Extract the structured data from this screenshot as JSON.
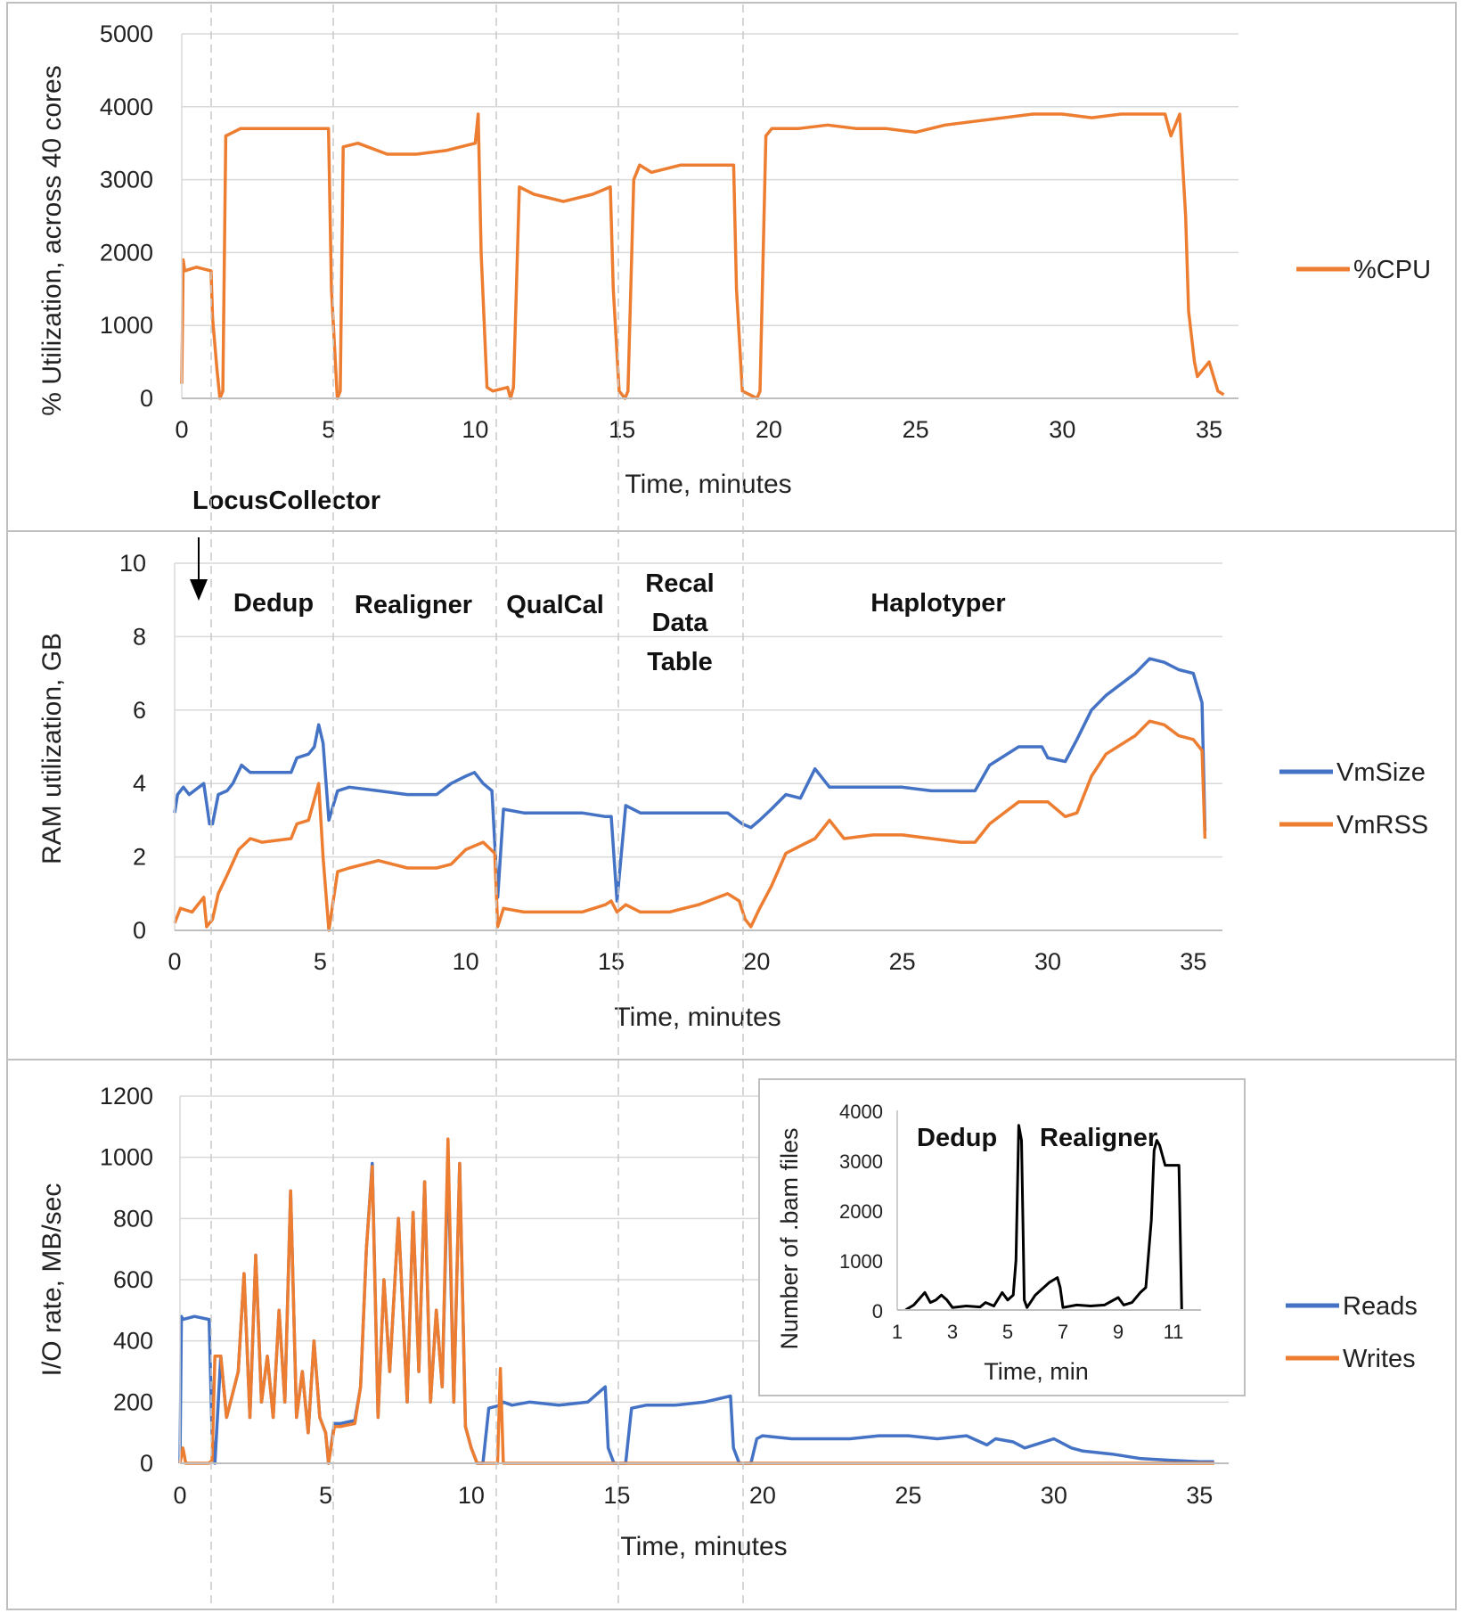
{
  "colors": {
    "blue": "#4472C4",
    "orange": "#ED7D31",
    "black": "#000000",
    "grid": "#D9D9D9",
    "frame": "#BFBFBF",
    "phase_line": "#C8C8C8"
  },
  "chart_data": [
    {
      "id": "cpu",
      "type": "line",
      "title": "",
      "xlabel": "Time, minutes",
      "ylabel": "% Utilization, across 40 cores",
      "xlim": [
        0,
        36
      ],
      "ylim": [
        0,
        5000
      ],
      "x_ticks": [
        "0",
        "5",
        "10",
        "15",
        "20",
        "25",
        "30",
        "35"
      ],
      "y_ticks": [
        "0",
        "1000",
        "2000",
        "3000",
        "4000",
        "5000"
      ],
      "grid": true,
      "legend": "right",
      "series": [
        {
          "name": "%CPU",
          "color": "orange",
          "x": [
            0,
            0.05,
            0.1,
            0.5,
            1.0,
            1.05,
            1.2,
            1.3,
            1.4,
            1.5,
            2,
            3,
            4,
            5,
            5.1,
            5.3,
            5.4,
            5.5,
            6,
            7,
            8,
            9,
            9.5,
            10,
            10.1,
            10.2,
            10.4,
            10.6,
            11.1,
            11.2,
            11.3,
            11.5,
            12,
            13,
            14,
            14.6,
            14.7,
            14.9,
            15.1,
            15.2,
            15.4,
            15.6,
            16,
            17,
            18,
            18.8,
            18.9,
            19.1,
            19.6,
            19.7,
            19.9,
            20.1,
            21,
            22,
            23,
            24,
            25,
            26,
            27,
            28,
            29,
            30,
            31,
            32,
            33,
            33.5,
            33.7,
            34,
            34.2,
            34.3,
            34.5,
            34.6,
            35,
            35.3,
            35.5
          ],
          "y": [
            200,
            1900,
            1750,
            1800,
            1750,
            1100,
            400,
            0,
            100,
            3600,
            3700,
            3700,
            3700,
            3700,
            1500,
            0,
            100,
            3450,
            3500,
            3350,
            3350,
            3400,
            3450,
            3500,
            3900,
            2000,
            150,
            100,
            150,
            0,
            150,
            2900,
            2800,
            2700,
            2800,
            2900,
            1500,
            100,
            0,
            100,
            3000,
            3200,
            3100,
            3200,
            3200,
            3200,
            1500,
            100,
            0,
            100,
            3600,
            3700,
            3700,
            3750,
            3700,
            3700,
            3650,
            3750,
            3800,
            3850,
            3900,
            3900,
            3850,
            3900,
            3900,
            3900,
            3600,
            3900,
            2500,
            1200,
            500,
            300,
            500,
            100,
            50
          ]
        }
      ]
    },
    {
      "id": "ram",
      "type": "line",
      "title": "",
      "xlabel": "Time, minutes",
      "ylabel": "RAM utilization, GB",
      "xlim": [
        0,
        36
      ],
      "ylim": [
        0,
        10
      ],
      "x_ticks": [
        "0",
        "5",
        "10",
        "15",
        "20",
        "25",
        "30",
        "35"
      ],
      "y_ticks": [
        "0",
        "2",
        "4",
        "6",
        "8",
        "10"
      ],
      "grid": true,
      "legend": "right",
      "annotations": [
        "LocusCollector",
        "Dedup",
        "Realigner",
        "QualCal",
        "Recal",
        "Data",
        "Table",
        "Haplotyper"
      ],
      "series": [
        {
          "name": "VmSize",
          "color": "blue",
          "x": [
            0,
            0.1,
            0.3,
            0.5,
            1.0,
            1.2,
            1.3,
            1.5,
            1.8,
            2,
            2.3,
            2.6,
            3,
            4,
            4.2,
            4.6,
            4.8,
            4.95,
            5.1,
            5.3,
            5.6,
            6,
            7,
            8,
            9,
            9.5,
            10,
            10.3,
            10.6,
            10.9,
            11.1,
            11.3,
            12,
            13,
            14,
            14.8,
            15,
            15.2,
            15.5,
            16,
            17,
            18,
            19,
            19.5,
            19.8,
            20.1,
            20.5,
            21,
            21.5,
            22,
            22.5,
            23,
            24,
            25,
            26,
            27,
            27.5,
            28,
            29,
            29.8,
            30,
            30.6,
            31,
            31.5,
            32,
            33,
            33.5,
            34,
            34.5,
            35,
            35.3,
            35.4
          ],
          "y": [
            3.2,
            3.7,
            3.9,
            3.7,
            4.0,
            2.9,
            2.9,
            3.7,
            3.8,
            4.0,
            4.5,
            4.3,
            4.3,
            4.3,
            4.7,
            4.8,
            5.0,
            5.6,
            5.1,
            3.0,
            3.8,
            3.9,
            3.8,
            3.7,
            3.7,
            4.0,
            4.2,
            4.3,
            4.0,
            3.8,
            0.9,
            3.3,
            3.2,
            3.2,
            3.2,
            3.1,
            3.1,
            0.8,
            3.4,
            3.2,
            3.2,
            3.2,
            3.2,
            2.9,
            2.8,
            3.0,
            3.3,
            3.7,
            3.6,
            4.4,
            3.9,
            3.9,
            3.9,
            3.9,
            3.8,
            3.8,
            3.8,
            4.5,
            5.0,
            5.0,
            4.7,
            4.6,
            5.2,
            6.0,
            6.4,
            7.0,
            7.4,
            7.3,
            7.1,
            7.0,
            6.2,
            2.7
          ]
        },
        {
          "name": "VmRSS",
          "color": "orange",
          "x": [
            0,
            0.2,
            0.6,
            1.0,
            1.1,
            1.3,
            1.5,
            1.8,
            2.2,
            2.6,
            3,
            4,
            4.2,
            4.6,
            4.95,
            5.1,
            5.3,
            5.6,
            6,
            7,
            8,
            9,
            9.5,
            10,
            10.3,
            10.6,
            11,
            11.1,
            11.3,
            12,
            13,
            14,
            14.8,
            15,
            15.2,
            15.5,
            16,
            17,
            18,
            19,
            19.4,
            19.6,
            19.8,
            20.1,
            20.5,
            21,
            21.5,
            22,
            22.5,
            23,
            24,
            25,
            26,
            27,
            27.5,
            28,
            29,
            30,
            30.6,
            31,
            31.5,
            32,
            33,
            33.5,
            34,
            34.5,
            35,
            35.3,
            35.4
          ],
          "y": [
            0.2,
            0.6,
            0.5,
            0.9,
            0.1,
            0.3,
            1.0,
            1.5,
            2.2,
            2.5,
            2.4,
            2.5,
            2.9,
            3.0,
            4.0,
            2.0,
            0.0,
            1.6,
            1.7,
            1.9,
            1.7,
            1.7,
            1.8,
            2.2,
            2.3,
            2.4,
            2.1,
            0.1,
            0.6,
            0.5,
            0.5,
            0.5,
            0.7,
            0.8,
            0.5,
            0.7,
            0.5,
            0.5,
            0.7,
            1.0,
            0.8,
            0.3,
            0.1,
            0.6,
            1.2,
            2.1,
            2.3,
            2.5,
            3.0,
            2.5,
            2.6,
            2.6,
            2.5,
            2.4,
            2.4,
            2.9,
            3.5,
            3.5,
            3.1,
            3.2,
            4.2,
            4.8,
            5.3,
            5.7,
            5.6,
            5.3,
            5.2,
            4.9,
            2.5
          ]
        }
      ]
    },
    {
      "id": "io",
      "type": "line",
      "title": "",
      "xlabel": "Time, minutes",
      "ylabel": "I/O rate, MB/sec",
      "xlim": [
        0,
        36
      ],
      "ylim": [
        0,
        1200
      ],
      "x_ticks": [
        "0",
        "5",
        "10",
        "15",
        "20",
        "25",
        "30",
        "35"
      ],
      "y_ticks": [
        "0",
        "200",
        "400",
        "600",
        "800",
        "1000",
        "1200"
      ],
      "grid": true,
      "legend": "right",
      "series": [
        {
          "name": "Reads",
          "color": "blue",
          "x": [
            0,
            0.05,
            0.1,
            0.5,
            1.0,
            1.1,
            1.2,
            1.4,
            1.6,
            2.0,
            2.2,
            2.4,
            2.6,
            2.8,
            3.0,
            3.2,
            3.4,
            3.6,
            3.8,
            4.0,
            4.2,
            4.4,
            4.6,
            4.8,
            5.0,
            5.1,
            5.3,
            5.5,
            6.0,
            6.2,
            6.4,
            6.6,
            6.8,
            7.0,
            7.2,
            7.5,
            7.8,
            8.0,
            8.2,
            8.4,
            8.6,
            8.8,
            9.0,
            9.2,
            9.4,
            9.6,
            9.8,
            10.0,
            10.2,
            10.4,
            10.6,
            11.0,
            11.1,
            11.4,
            12,
            13,
            14,
            14.6,
            14.7,
            14.9,
            15.3,
            15.5,
            16,
            17,
            18,
            18.9,
            19.0,
            19.2,
            19.6,
            19.8,
            20,
            21,
            22,
            23,
            24,
            25,
            26,
            27,
            27.7,
            28,
            28.6,
            29,
            30,
            30.6,
            31,
            32,
            33,
            34,
            35,
            35.5
          ],
          "y": [
            0,
            480,
            470,
            480,
            470,
            100,
            0,
            350,
            150,
            300,
            620,
            150,
            680,
            200,
            350,
            150,
            500,
            200,
            890,
            150,
            300,
            100,
            400,
            150,
            100,
            0,
            130,
            130,
            140,
            250,
            700,
            980,
            150,
            600,
            300,
            800,
            200,
            820,
            300,
            920,
            200,
            500,
            250,
            1000,
            200,
            980,
            120,
            50,
            0,
            0,
            180,
            190,
            200,
            190,
            200,
            190,
            200,
            250,
            50,
            0,
            0,
            180,
            190,
            190,
            200,
            220,
            50,
            0,
            0,
            80,
            90,
            80,
            80,
            80,
            90,
            90,
            80,
            90,
            60,
            80,
            70,
            50,
            80,
            50,
            40,
            30,
            15,
            10,
            5,
            5
          ]
        },
        {
          "name": "Writes",
          "color": "orange",
          "x": [
            0,
            0.1,
            0.2,
            1.0,
            1.1,
            1.2,
            1.4,
            1.6,
            2.0,
            2.2,
            2.4,
            2.6,
            2.8,
            3.0,
            3.2,
            3.4,
            3.6,
            3.8,
            4.0,
            4.2,
            4.4,
            4.6,
            4.8,
            5.0,
            5.1,
            5.3,
            5.5,
            6.0,
            6.2,
            6.4,
            6.6,
            6.8,
            7.0,
            7.2,
            7.5,
            7.8,
            8.0,
            8.2,
            8.4,
            8.6,
            8.8,
            9.0,
            9.2,
            9.4,
            9.6,
            9.8,
            10.0,
            10.2,
            10.4,
            10.6,
            10.9,
            11.0,
            11.1,
            11.2,
            12,
            20,
            30,
            35.5
          ],
          "y": [
            0,
            50,
            0,
            0,
            10,
            350,
            350,
            150,
            300,
            620,
            150,
            680,
            200,
            350,
            150,
            500,
            200,
            890,
            150,
            300,
            100,
            400,
            150,
            100,
            0,
            120,
            120,
            130,
            250,
            700,
            970,
            150,
            600,
            300,
            800,
            200,
            820,
            300,
            920,
            200,
            500,
            250,
            1060,
            200,
            980,
            120,
            50,
            0,
            0,
            0,
            0,
            310,
            0,
            0,
            0,
            0,
            0,
            0
          ]
        }
      ]
    },
    {
      "id": "inset",
      "type": "line",
      "title": "",
      "xlabel": "Time, min",
      "ylabel": "Number of .bam files",
      "xlim": [
        1,
        12
      ],
      "ylim": [
        0,
        4000
      ],
      "x_ticks": [
        "1",
        "3",
        "5",
        "7",
        "9",
        "11"
      ],
      "y_ticks": [
        "0",
        "1000",
        "2000",
        "3000",
        "4000"
      ],
      "grid": false,
      "annotations": [
        "Dedup",
        "Realigner"
      ],
      "series": [
        {
          "name": "bam files",
          "color": "black",
          "x": [
            1.3,
            1.6,
            2.0,
            2.2,
            2.4,
            2.6,
            2.8,
            3.0,
            3.5,
            4.0,
            4.2,
            4.5,
            4.8,
            5.0,
            5.2,
            5.3,
            5.4,
            5.5,
            5.6,
            5.7,
            6.0,
            6.5,
            6.8,
            6.9,
            7.0,
            7.5,
            8,
            8.5,
            9,
            9.2,
            9.5,
            9.8,
            10.0,
            10.2,
            10.3,
            10.4,
            10.5,
            10.6,
            10.7,
            10.8,
            11.2,
            11.3
          ],
          "y": [
            0,
            100,
            350,
            150,
            200,
            300,
            200,
            50,
            80,
            60,
            150,
            80,
            350,
            200,
            300,
            1000,
            3700,
            3400,
            200,
            50,
            300,
            550,
            650,
            450,
            50,
            100,
            80,
            100,
            250,
            100,
            150,
            350,
            450,
            1800,
            3200,
            3400,
            3300,
            3100,
            2900,
            2900,
            2900,
            0
          ]
        }
      ]
    }
  ]
}
